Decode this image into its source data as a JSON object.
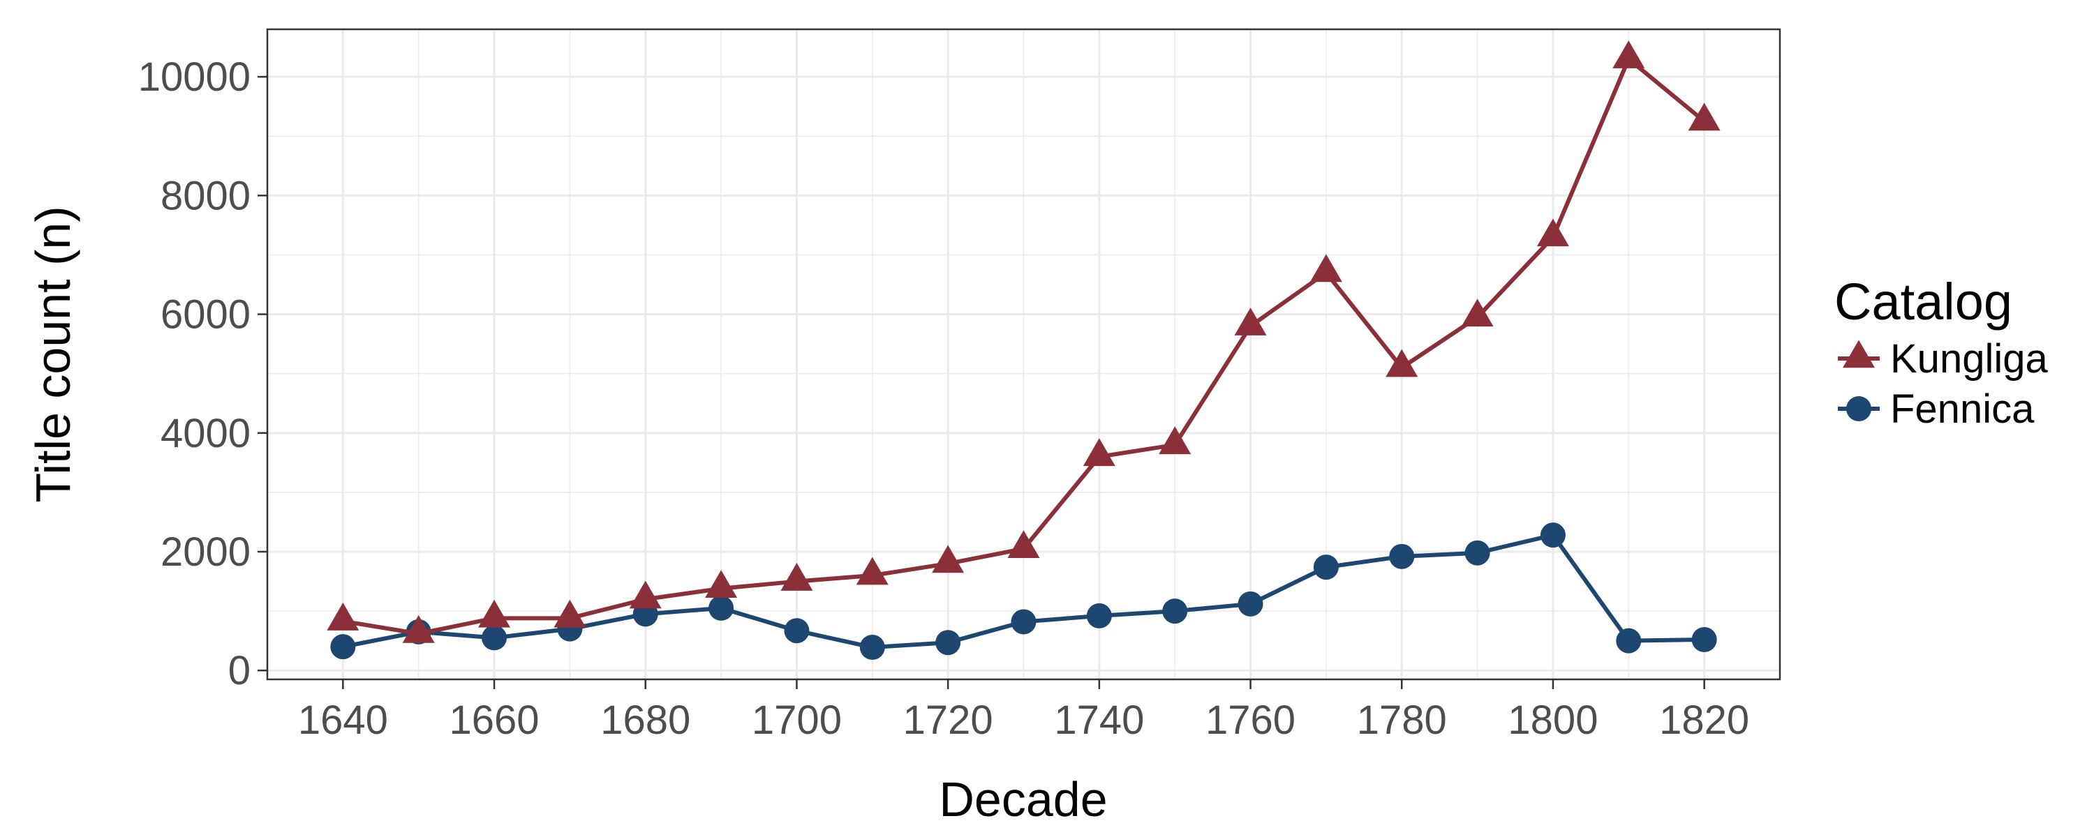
{
  "chart_data": {
    "type": "line",
    "title": "",
    "xlabel": "Decade",
    "ylabel": "Title count (n)",
    "x": [
      1640,
      1650,
      1660,
      1670,
      1680,
      1690,
      1700,
      1710,
      1720,
      1730,
      1740,
      1750,
      1760,
      1770,
      1780,
      1790,
      1800,
      1810,
      1820
    ],
    "xlim": [
      1630,
      1830
    ],
    "ylim": [
      -150,
      10800
    ],
    "x_ticks": [
      "1640",
      "1660",
      "1680",
      "1700",
      "1720",
      "1740",
      "1760",
      "1780",
      "1800",
      "1820"
    ],
    "y_ticks": [
      "0",
      "2000",
      "4000",
      "6000",
      "8000",
      "10000"
    ],
    "grid": true,
    "legend": {
      "title": "Catalog",
      "position": "right"
    },
    "series": [
      {
        "name": "Kungliga",
        "marker": "triangle",
        "color": "#8b3039",
        "values": [
          830,
          620,
          880,
          880,
          1200,
          1380,
          1500,
          1600,
          1800,
          2050,
          3600,
          3800,
          5800,
          6700,
          5100,
          5950,
          7300,
          10300,
          9250
        ]
      },
      {
        "name": "Fennica",
        "marker": "circle",
        "color": "#1d4770",
        "values": [
          400,
          650,
          550,
          700,
          950,
          1050,
          670,
          390,
          470,
          820,
          920,
          1000,
          1120,
          1740,
          1920,
          1980,
          2280,
          500,
          520
        ]
      }
    ]
  }
}
